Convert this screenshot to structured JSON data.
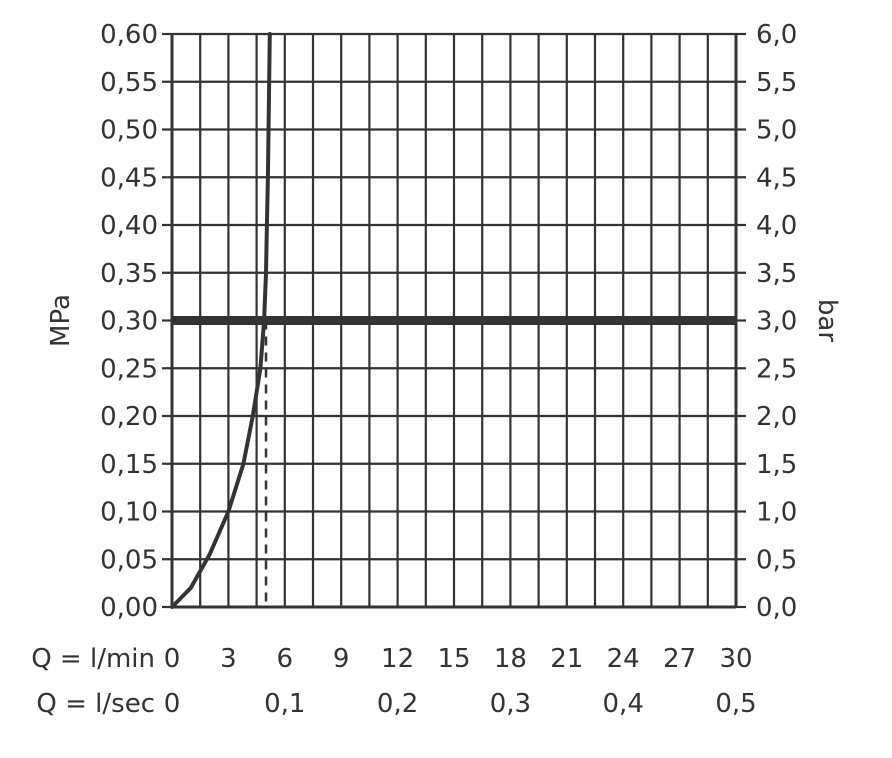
{
  "chart_data": {
    "type": "line",
    "left_axis": {
      "label": "MPa",
      "ylim": [
        0,
        0.6
      ],
      "ticks": [
        0.0,
        0.05,
        0.1,
        0.15,
        0.2,
        0.25,
        0.3,
        0.35,
        0.4,
        0.45,
        0.5,
        0.55,
        0.6
      ],
      "tick_labels": [
        "0,00",
        "0,05",
        "0,10",
        "0,15",
        "0,20",
        "0,25",
        "0,30",
        "0,35",
        "0,40",
        "0,45",
        "0,50",
        "0,55",
        "0,60"
      ]
    },
    "right_axis": {
      "label": "bar",
      "ylim": [
        0,
        6
      ],
      "tick_labels": [
        "0,0",
        "0,5",
        "1,0",
        "1,5",
        "2,0",
        "2,5",
        "3,0",
        "3,5",
        "4,0",
        "4,5",
        "5,0",
        "5,5",
        "6,0"
      ]
    },
    "x_axis_lmin": {
      "label": "Q = l/min",
      "xlim": [
        0,
        30
      ],
      "ticks": [
        0,
        3,
        6,
        9,
        12,
        15,
        18,
        21,
        24,
        27,
        30
      ],
      "tick_labels": [
        "0",
        "3",
        "6",
        "9",
        "12",
        "15",
        "18",
        "21",
        "24",
        "27",
        "30"
      ]
    },
    "x_axis_lsec": {
      "label": "Q = l/sec",
      "ticks": [
        0,
        6,
        12,
        18,
        24,
        30
      ],
      "tick_labels": [
        "0",
        "0,1",
        "0,2",
        "0,3",
        "0,4",
        "0,5"
      ]
    },
    "grid": true,
    "series": [
      {
        "style": "flow-curve",
        "x": [
          0,
          1,
          2,
          3,
          3.8,
          4.3,
          4.7,
          4.9,
          5.0,
          5.05,
          5.1,
          5.2
        ],
        "y": [
          0,
          0.02,
          0.055,
          0.1,
          0.15,
          0.2,
          0.25,
          0.3,
          0.35,
          0.4,
          0.45,
          0.6
        ]
      }
    ],
    "reference_line": {
      "y": 0.3
    },
    "operating_point": {
      "x": 5.0,
      "y": 0.3
    }
  }
}
